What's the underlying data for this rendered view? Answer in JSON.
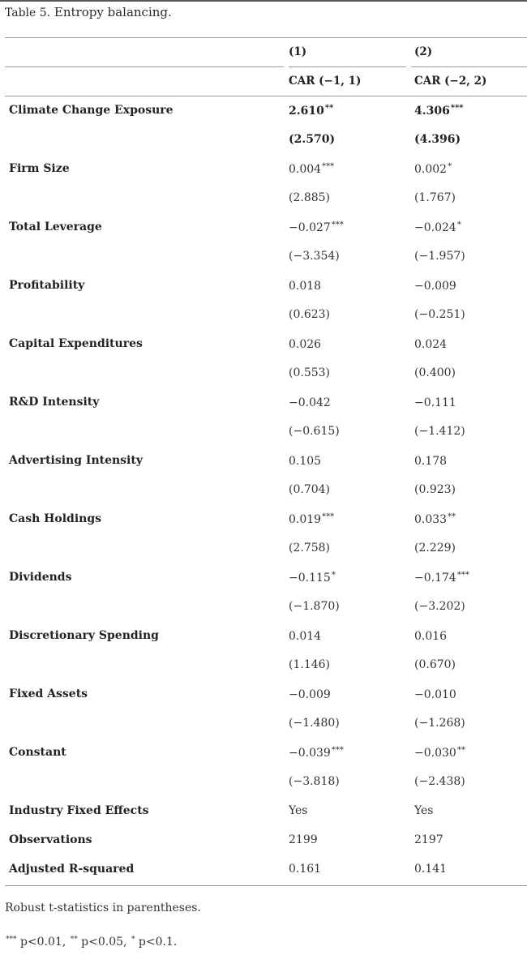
{
  "caption": {
    "label": "Table 5.",
    "text": "Entropy balancing."
  },
  "header": {
    "col1_num": "(1)",
    "col2_num": "(2)",
    "col1_name": "CAR (−1, 1)",
    "col2_name": "CAR (−2, 2)"
  },
  "rows": [
    {
      "label": "Climate Change Exposure",
      "bold": true,
      "c1": "2.610",
      "c1s": "**",
      "c2": "4.306",
      "c2s": "***",
      "t1": "(2.570)",
      "t2": "(4.396)"
    },
    {
      "label": "Firm Size",
      "c1": "0.004",
      "c1s": "***",
      "c2": "0.002",
      "c2s": "*",
      "t1": "(2.885)",
      "t2": "(1.767)"
    },
    {
      "label": "Total Leverage",
      "c1": "−0.027",
      "c1s": "***",
      "c2": "−0.024",
      "c2s": "*",
      "t1": "(−3.354)",
      "t2": "(−1.957)"
    },
    {
      "label": "Profitability",
      "c1": "0.018",
      "c1s": "",
      "c2": "−0.009",
      "c2s": "",
      "t1": "(0.623)",
      "t2": "(−0.251)"
    },
    {
      "label": "Capital Expenditures",
      "c1": "0.026",
      "c1s": "",
      "c2": "0.024",
      "c2s": "",
      "t1": "(0.553)",
      "t2": "(0.400)"
    },
    {
      "label": "R&D Intensity",
      "c1": "−0.042",
      "c1s": "",
      "c2": "−0.111",
      "c2s": "",
      "t1": "(−0.615)",
      "t2": "(−1.412)"
    },
    {
      "label": "Advertising Intensity",
      "c1": "0.105",
      "c1s": "",
      "c2": "0.178",
      "c2s": "",
      "t1": "(0.704)",
      "t2": "(0.923)"
    },
    {
      "label": "Cash Holdings",
      "c1": "0.019",
      "c1s": "***",
      "c2": "0.033",
      "c2s": "**",
      "t1": "(2.758)",
      "t2": "(2.229)"
    },
    {
      "label": "Dividends",
      "c1": "−0.115",
      "c1s": "*",
      "c2": "−0.174",
      "c2s": "***",
      "t1": "(−1.870)",
      "t2": "(−3.202)"
    },
    {
      "label": "Discretionary Spending",
      "c1": "0.014",
      "c1s": "",
      "c2": "0.016",
      "c2s": "",
      "t1": "(1.146)",
      "t2": "(0.670)"
    },
    {
      "label": "Fixed Assets",
      "c1": "−0.009",
      "c1s": "",
      "c2": "−0.010",
      "c2s": "",
      "t1": "(−1.480)",
      "t2": "(−1.268)"
    },
    {
      "label": "Constant",
      "c1": "−0.039",
      "c1s": "***",
      "c2": "−0.030",
      "c2s": "**",
      "t1": "(−3.818)",
      "t2": "(−2.438)"
    }
  ],
  "summary_rows": [
    {
      "label": "Industry Fixed Effects",
      "c1": "Yes",
      "c2": "Yes"
    },
    {
      "label": "Observations",
      "c1": "2199",
      "c2": "2197"
    },
    {
      "label": "Adjusted R-squared",
      "c1": "0.161",
      "c2": "0.141"
    }
  ],
  "footnotes": {
    "robust": "Robust t-statistics in parentheses.",
    "s3": "***",
    "t3": " p<0.01, ",
    "s2": "**",
    "t2": " p<0.05, ",
    "s1": "*",
    "t1": " p<0.1."
  }
}
